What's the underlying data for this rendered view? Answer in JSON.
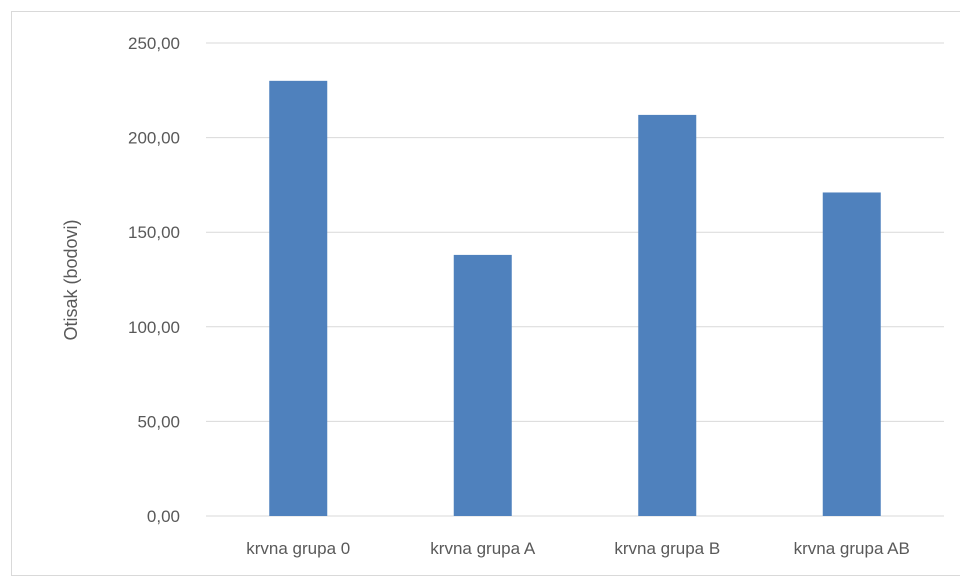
{
  "chart_data": {
    "type": "bar",
    "title": "",
    "xlabel": "",
    "ylabel": "Otisak (bodovi)",
    "categories": [
      "krvna grupa 0",
      "krvna grupa A",
      "krvna grupa B",
      "krvna grupa AB"
    ],
    "values": [
      230,
      138,
      212,
      171
    ],
    "ylim": [
      0,
      250
    ],
    "yticks": [
      "0,00",
      "50,00",
      "100,00",
      "150,00",
      "200,00",
      "250,00"
    ],
    "grid": true,
    "legend": "none",
    "bar_color": "#4f81bd",
    "grid_color": "#d9d9d9",
    "text_color": "#595959"
  }
}
